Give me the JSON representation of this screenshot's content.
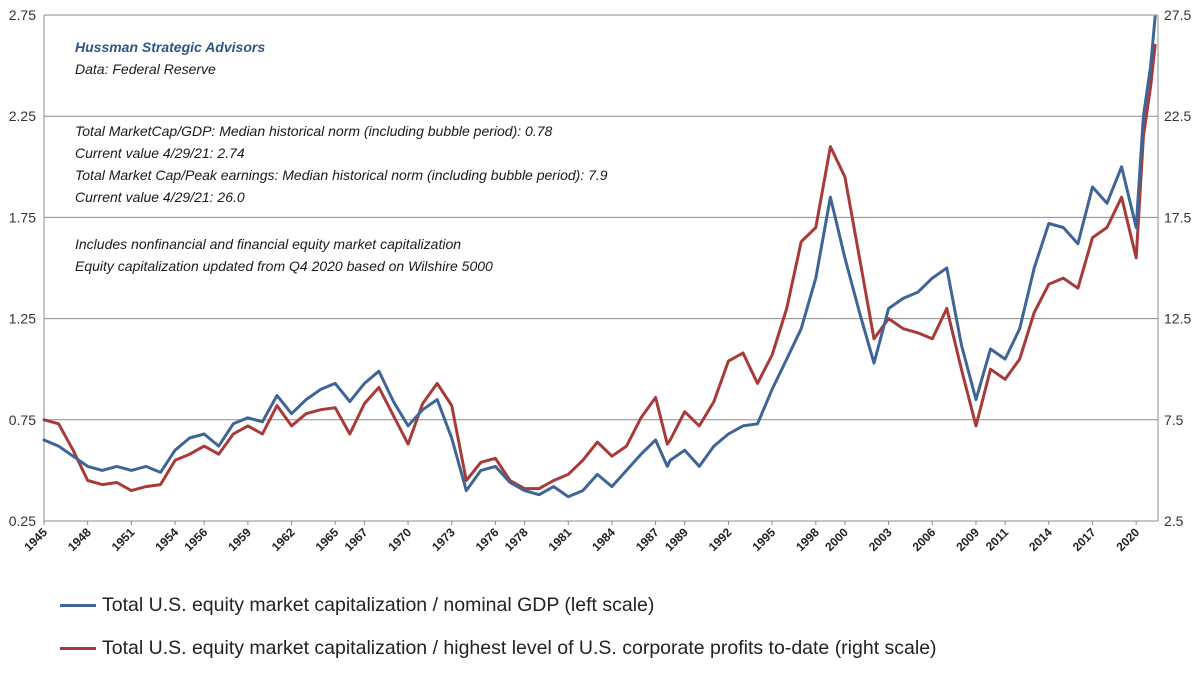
{
  "colors": {
    "series_gdp": "#3e6596",
    "series_profits": "#a83a3a",
    "grid": "#8c8c8c",
    "brand": "#2f5587"
  },
  "annotations": {
    "brand": "Hussman Strategic Advisors",
    "source": "Data: Federal Reserve",
    "line1": "Total MarketCap/GDP: Median historical norm (including bubble period): 0.78",
    "line2": "Current value 4/29/21:  2.74",
    "line3": "Total Market Cap/Peak earnings: Median historical norm (including bubble period):  7.9",
    "line4": "Current value 4/29/21:  26.0",
    "line5": "Includes nonfinancial and financial equity market capitalization",
    "line6": "Equity capitalization updated from Q4 2020  based on Wilshire 5000"
  },
  "chart_data": {
    "type": "line",
    "title": "",
    "xlim": [
      1945,
      2021.5
    ],
    "ylim_left": [
      0.25,
      2.75
    ],
    "ylim_right": [
      2.5,
      27.5
    ],
    "yticks_left": [
      "0.25",
      "0.75",
      "1.25",
      "1.75",
      "2.25",
      "2.75"
    ],
    "yticks_right": [
      "2.5",
      "7.5",
      "12.5",
      "17.5",
      "22.5",
      "27.5"
    ],
    "xticks": [
      "1945",
      "1948",
      "1951",
      "1954",
      "1956",
      "1959",
      "1962",
      "1965",
      "1967",
      "1970",
      "1973",
      "1976",
      "1978",
      "1981",
      "1984",
      "1987",
      "1989",
      "1992",
      "1995",
      "1998",
      "2000",
      "2003",
      "2006",
      "2009",
      "2011",
      "2014",
      "2017",
      "2020"
    ],
    "grid": "horizontal",
    "legend_position": "bottom",
    "series": [
      {
        "name": "Total U.S. equity market capitalization / nominal GDP (left scale)",
        "axis": "left",
        "x": [
          1945,
          1946,
          1947,
          1948,
          1949,
          1950,
          1951,
          1952,
          1953,
          1954,
          1955,
          1956,
          1957,
          1958,
          1959,
          1960,
          1961,
          1962,
          1963,
          1964,
          1965,
          1966,
          1967,
          1968,
          1969,
          1970,
          1971,
          1972,
          1973,
          1974,
          1975,
          1976,
          1977,
          1978,
          1979,
          1980,
          1981,
          1982,
          1983,
          1984,
          1985,
          1986,
          1987,
          1987.8,
          1988,
          1989,
          1990,
          1991,
          1992,
          1993,
          1994,
          1995,
          1996,
          1997,
          1998,
          1999,
          2000,
          2001,
          2002,
          2003,
          2004,
          2005,
          2006,
          2007,
          2008,
          2009,
          2010,
          2011,
          2012,
          2013,
          2014,
          2015,
          2016,
          2017,
          2018,
          2019,
          2020,
          2020.5,
          2021,
          2021.3
        ],
        "values": [
          0.65,
          0.62,
          0.57,
          0.52,
          0.5,
          0.52,
          0.5,
          0.52,
          0.49,
          0.6,
          0.66,
          0.68,
          0.62,
          0.73,
          0.76,
          0.74,
          0.87,
          0.78,
          0.85,
          0.9,
          0.93,
          0.84,
          0.93,
          0.99,
          0.84,
          0.72,
          0.8,
          0.85,
          0.66,
          0.4,
          0.5,
          0.52,
          0.44,
          0.4,
          0.38,
          0.42,
          0.37,
          0.4,
          0.48,
          0.42,
          0.5,
          0.58,
          0.65,
          0.52,
          0.55,
          0.6,
          0.52,
          0.62,
          0.68,
          0.72,
          0.73,
          0.9,
          1.05,
          1.2,
          1.45,
          1.85,
          1.55,
          1.28,
          1.03,
          1.3,
          1.35,
          1.38,
          1.45,
          1.5,
          1.12,
          0.85,
          1.1,
          1.05,
          1.2,
          1.5,
          1.72,
          1.7,
          1.62,
          1.9,
          1.82,
          2.0,
          1.7,
          2.25,
          2.5,
          2.74
        ]
      },
      {
        "name": "Total U.S. equity market capitalization / highest level of U.S. corporate profits to-date (right scale)",
        "axis": "right",
        "x": [
          1945,
          1946,
          1947,
          1948,
          1949,
          1950,
          1951,
          1952,
          1953,
          1954,
          1955,
          1956,
          1957,
          1958,
          1959,
          1960,
          1961,
          1962,
          1963,
          1964,
          1965,
          1966,
          1967,
          1968,
          1969,
          1970,
          1971,
          1972,
          1973,
          1974,
          1975,
          1976,
          1977,
          1978,
          1979,
          1980,
          1981,
          1982,
          1983,
          1984,
          1985,
          1986,
          1987,
          1987.8,
          1988,
          1989,
          1990,
          1991,
          1992,
          1993,
          1994,
          1995,
          1996,
          1997,
          1998,
          1999,
          2000,
          2001,
          2002,
          2003,
          2004,
          2005,
          2006,
          2007,
          2008,
          2009,
          2010,
          2011,
          2012,
          2013,
          2014,
          2015,
          2016,
          2017,
          2018,
          2019,
          2020,
          2020.5,
          2021,
          2021.3
        ],
        "values": [
          7.5,
          7.3,
          6.0,
          4.5,
          4.3,
          4.4,
          4.0,
          4.2,
          4.3,
          5.5,
          5.8,
          6.2,
          5.8,
          6.8,
          7.2,
          6.8,
          8.2,
          7.2,
          7.8,
          8.0,
          8.1,
          6.8,
          8.3,
          9.1,
          7.7,
          6.3,
          8.3,
          9.3,
          8.2,
          4.5,
          5.4,
          5.6,
          4.5,
          4.1,
          4.1,
          4.5,
          4.8,
          5.5,
          6.4,
          5.7,
          6.2,
          7.6,
          8.6,
          6.3,
          6.5,
          7.9,
          7.2,
          8.4,
          10.4,
          10.8,
          9.3,
          10.7,
          13.0,
          16.3,
          17.0,
          21.0,
          19.5,
          15.5,
          11.5,
          12.5,
          12.0,
          11.8,
          11.5,
          13.0,
          10.0,
          7.2,
          10.0,
          9.5,
          10.5,
          12.8,
          14.2,
          14.5,
          14.0,
          16.5,
          17.0,
          18.5,
          15.5,
          21.5,
          24.0,
          26.0
        ]
      }
    ]
  }
}
